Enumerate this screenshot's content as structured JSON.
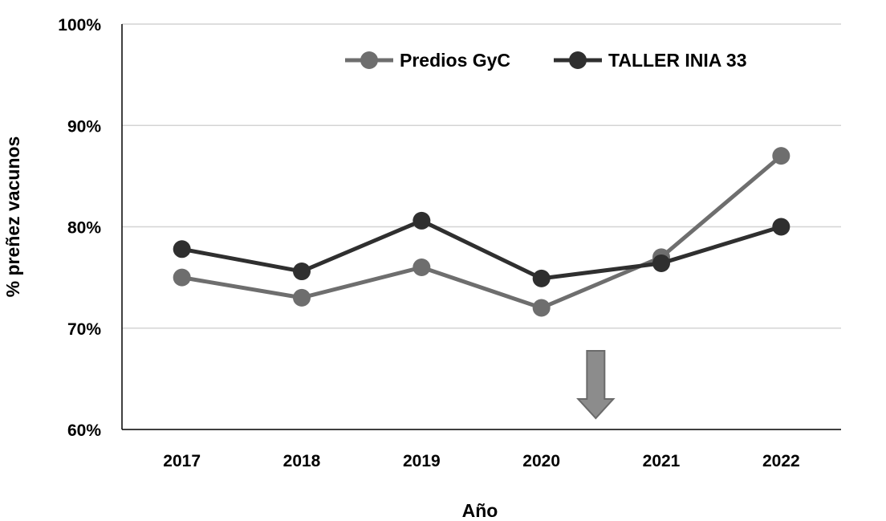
{
  "chart_data": {
    "type": "line",
    "categories": [
      "2017",
      "2018",
      "2019",
      "2020",
      "2021",
      "2022"
    ],
    "series": [
      {
        "name": "Predios GyC",
        "values": [
          75,
          73,
          76,
          72,
          77,
          87
        ],
        "color": "#6e6e6e"
      },
      {
        "name": "TALLER INIA 33",
        "values": [
          77.8,
          75.6,
          80.6,
          74.9,
          76.4,
          80
        ],
        "color": "#2f2f2f"
      }
    ],
    "xlabel": "Año",
    "ylabel": "% preñez vacunos",
    "ylim": [
      60,
      100
    ],
    "yticks": [
      60,
      70,
      80,
      90,
      100
    ],
    "ytick_labels": [
      "60%",
      "70%",
      "80%",
      "90%",
      "100%"
    ],
    "grid": true,
    "legend_position": "top-right",
    "annotation": {
      "type": "down-arrow",
      "x_between": [
        "2020",
        "2021"
      ],
      "color": "#8c8c8c"
    }
  }
}
